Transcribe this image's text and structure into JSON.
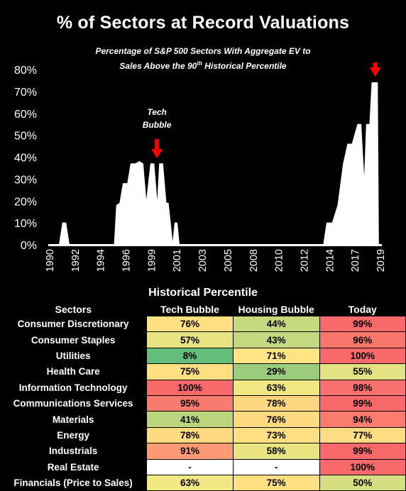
{
  "title": "% of Sectors at Record Valuations",
  "subtitle": {
    "line1": "Percentage of S&P 500 Sectors With Aggregate EV to",
    "line2_pre": "Sales Above the 90",
    "line2_sup": "th",
    "line2_post": "  Historical Percentile"
  },
  "chart_data": {
    "type": "area",
    "title": "% of Sectors at Record Valuations",
    "subtitle": "Percentage of S&P 500 Sectors With Aggregate EV to Sales Above the 90th Historical Percentile",
    "ylim": [
      0,
      80
    ],
    "yticks": [
      "0%",
      "10%",
      "20%",
      "30%",
      "40%",
      "50%",
      "60%",
      "70%",
      "80%"
    ],
    "xticks": [
      "1990",
      "1992",
      "1994",
      "1996",
      "1999",
      "2001",
      "2003",
      "2005",
      "2008",
      "2010",
      "2012",
      "2014",
      "2017",
      "2019"
    ],
    "annotation": {
      "text_line1": "Tech",
      "text_line2": "Bubble",
      "x": 2000.0
    },
    "arrows": [
      2000.0,
      2019.7
    ],
    "x": [
      1990.0,
      1991.0,
      1991.3,
      1991.6,
      1991.9,
      1992.2,
      1996.0,
      1996.2,
      1996.5,
      1996.8,
      1997.2,
      1997.5,
      1997.9,
      1998.3,
      1998.6,
      1998.9,
      1999.3,
      1999.6,
      1999.9,
      2000.1,
      2000.4,
      2000.7,
      2000.9,
      2001.3,
      2001.5,
      2001.7,
      2001.9,
      2002.1,
      2002.4,
      2002.7,
      2015.0,
      2015.3,
      2015.8,
      2016.3,
      2016.8,
      2017.2,
      2017.6,
      2018.1,
      2018.4,
      2018.7,
      2018.9,
      2019.2,
      2019.4,
      2019.6,
      2019.9,
      2020.0
    ],
    "values": [
      0,
      0,
      10,
      10,
      0,
      0,
      0,
      18,
      19,
      28,
      28,
      37,
      37,
      38,
      37,
      19,
      37,
      37,
      18,
      37,
      37,
      19,
      19,
      0,
      10,
      10,
      0,
      0,
      0,
      0,
      0,
      10,
      10,
      18,
      37,
      46,
      46,
      55,
      55,
      28,
      55,
      55,
      74,
      74,
      74,
      0
    ]
  },
  "table": {
    "title": "Historical Percentile",
    "headers": [
      "Sectors",
      "Tech Bubble",
      "Housing Bubble",
      "Today"
    ],
    "rows": [
      {
        "sector": "Consumer Discretionary",
        "tech": "76%",
        "housing": "44%",
        "today": "99%",
        "colors": [
          "#fee082",
          "#c6d97f",
          "#f8696b"
        ]
      },
      {
        "sector": "Consumer Staples",
        "tech": "57%",
        "housing": "43%",
        "today": "96%",
        "colors": [
          "#e7e383",
          "#c4d87f",
          "#f9766c"
        ]
      },
      {
        "sector": "Utilities",
        "tech": "8%",
        "housing": "71%",
        "today": "100%",
        "colors": [
          "#63be7b",
          "#fee482",
          "#f8696b"
        ]
      },
      {
        "sector": "Health Care",
        "tech": "75%",
        "housing": "29%",
        "today": "55%",
        "colors": [
          "#fee082",
          "#9ccc7d",
          "#e3e383"
        ]
      },
      {
        "sector": "Information Technology",
        "tech": "100%",
        "housing": "63%",
        "today": "98%",
        "colors": [
          "#f8696b",
          "#f1e783",
          "#f9706c"
        ]
      },
      {
        "sector": "Communications Services",
        "tech": "95%",
        "housing": "78%",
        "today": "99%",
        "colors": [
          "#f97a6e",
          "#fed680",
          "#f8696b"
        ]
      },
      {
        "sector": "Materials",
        "tech": "41%",
        "housing": "76%",
        "today": "94%",
        "colors": [
          "#bad57e",
          "#feda81",
          "#f97c6e"
        ]
      },
      {
        "sector": "Energy",
        "tech": "78%",
        "housing": "73%",
        "today": "77%",
        "colors": [
          "#feda81",
          "#fee082",
          "#fedc81"
        ]
      },
      {
        "sector": "Industrials",
        "tech": "91%",
        "housing": "58%",
        "today": "99%",
        "colors": [
          "#fb9a74",
          "#e8e482",
          "#f8696b"
        ]
      },
      {
        "sector": "Real Estate",
        "tech": "-",
        "housing": "-",
        "today": "100%",
        "colors": [
          "#ffffff",
          "#ffffff",
          "#f8696b"
        ]
      },
      {
        "sector": "Financials (Price to Sales)",
        "tech": "63%",
        "housing": "75%",
        "today": "50%",
        "colors": [
          "#f1e783",
          "#fee082",
          "#d5de81"
        ]
      }
    ]
  }
}
